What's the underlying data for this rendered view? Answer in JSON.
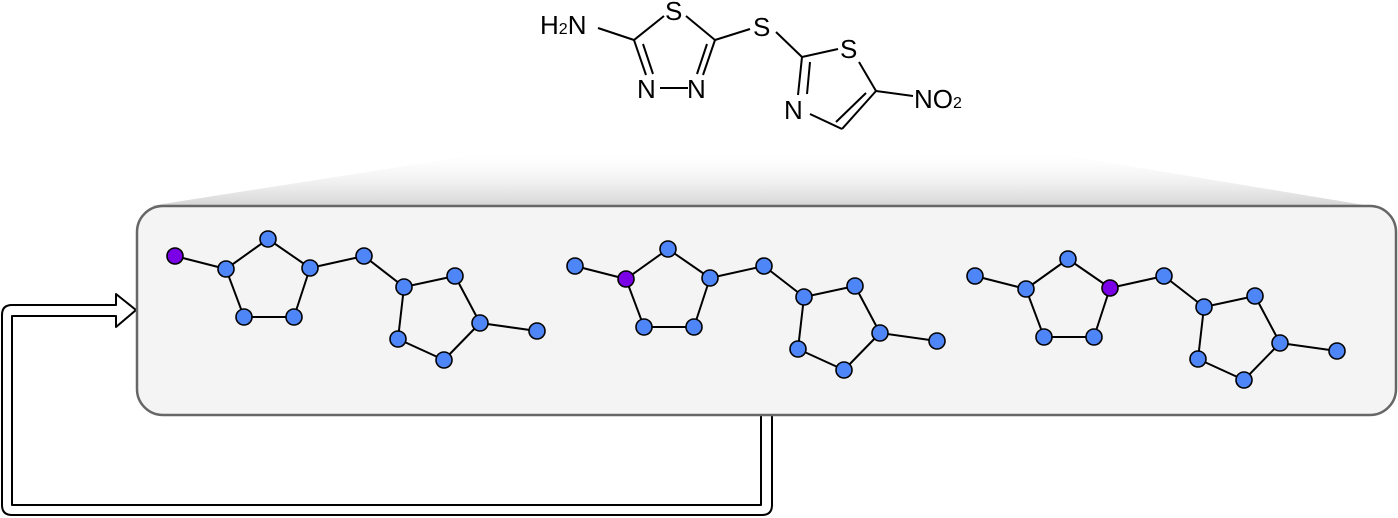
{
  "molecule": {
    "labels": {
      "amine": {
        "main": "H",
        "sub": "2",
        "tail": "N"
      },
      "s_ring1": "S",
      "n_left": "N",
      "n_right": "N",
      "s_bridge": "S",
      "s_ring2": "S",
      "n_ring2": "N",
      "nitro": {
        "main": "NO",
        "sub": "2"
      }
    }
  },
  "graph_panel": {
    "node_color": "#4f86f7",
    "highlight_color": "#7a00e6",
    "node_outline_color": "#000000",
    "panel_fill": "#f4f4f4",
    "panel_border": "#666666",
    "frames": [
      {
        "highlighted_node": 0
      },
      {
        "highlighted_node": 1
      },
      {
        "highlighted_node": 3
      }
    ]
  },
  "loop_arrow": {
    "direction": "feedback-to-panel"
  }
}
